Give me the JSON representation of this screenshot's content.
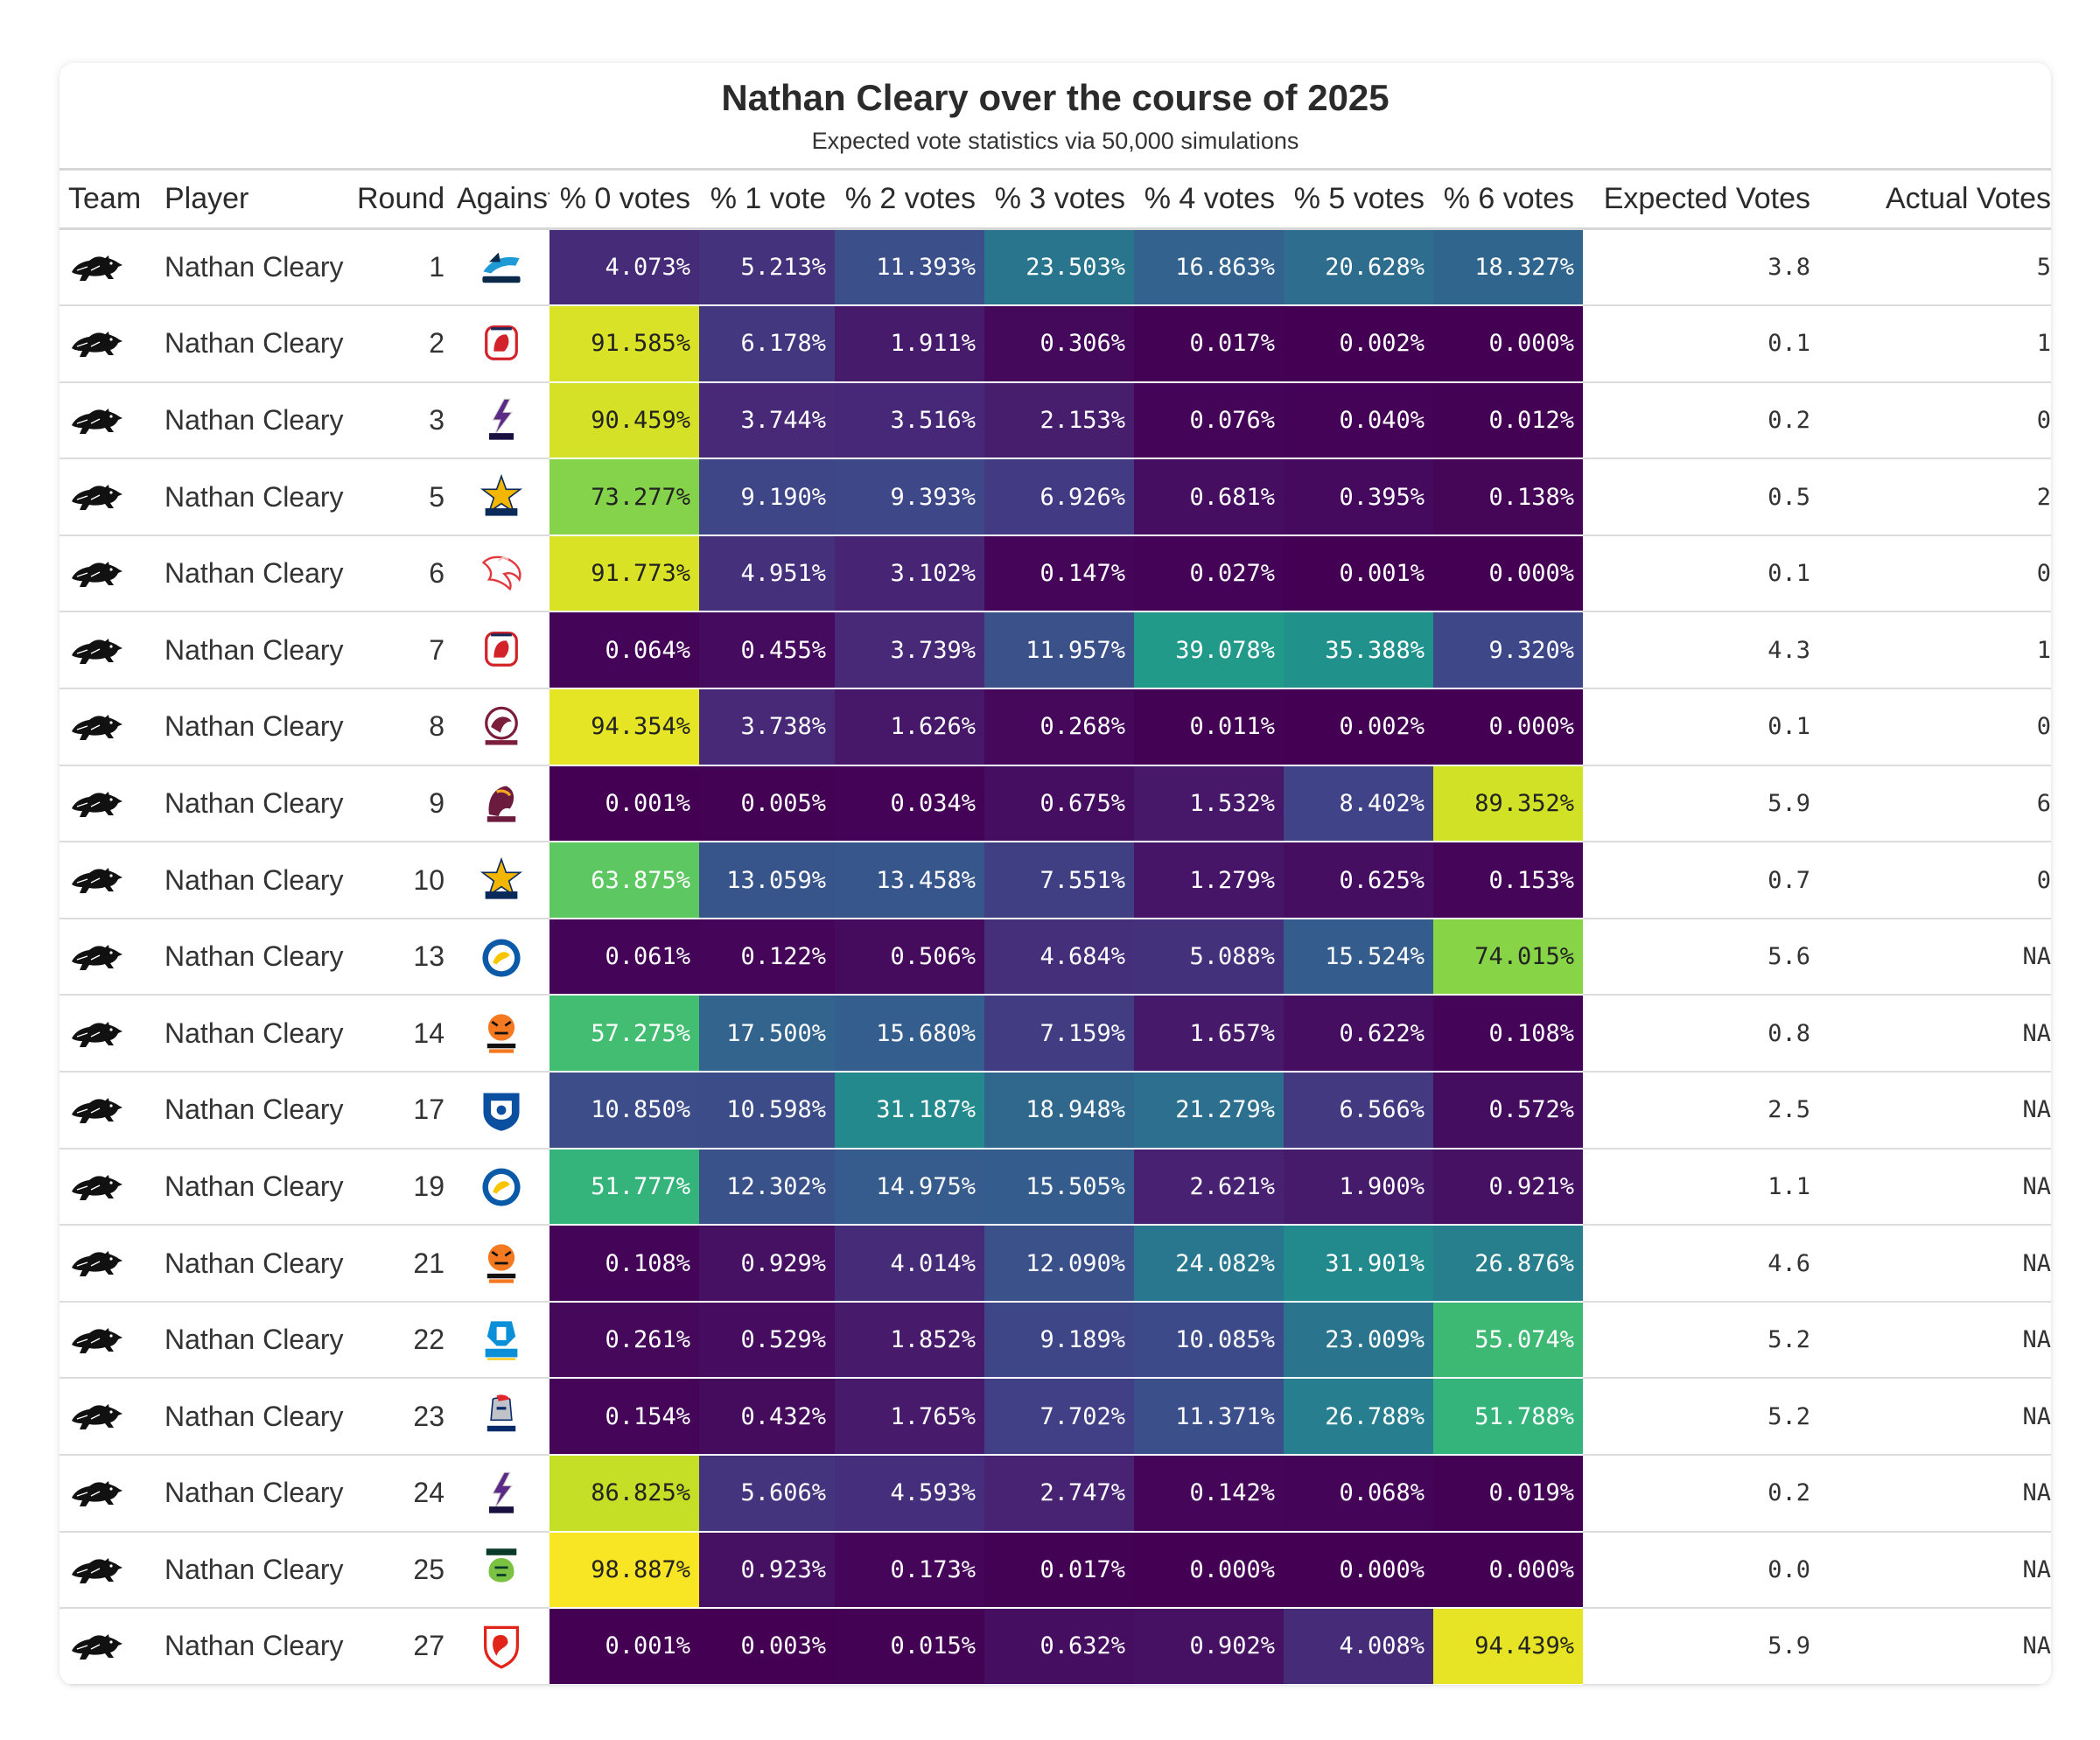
{
  "chart_data": {
    "type": "table",
    "title": "Nathan Cleary over the course of 2025",
    "subtitle": "Expected vote statistics via 50,000 simulations",
    "columns": [
      "Team",
      "Player",
      "Round",
      "Against",
      "% 0 votes",
      "% 1 vote",
      "% 2 votes",
      "% 3 votes",
      "% 4 votes",
      "% 5 votes",
      "% 6 votes",
      "Expected Votes",
      "Actual Votes"
    ],
    "colormap": "viridis",
    "rows": [
      {
        "team_icon": "panthers-logo-icon",
        "player": "Nathan Cleary",
        "round": "1",
        "against": "sharks-logo-icon",
        "pcts": [
          "4.073%",
          "5.213%",
          "11.393%",
          "23.503%",
          "16.863%",
          "20.628%",
          "18.327%"
        ],
        "vals": [
          4.073,
          5.213,
          11.393,
          23.503,
          16.863,
          20.628,
          18.327
        ],
        "expected": "3.8",
        "actual": "5"
      },
      {
        "team_icon": "panthers-logo-icon",
        "player": "Nathan Cleary",
        "round": "2",
        "against": "roosters-logo-icon",
        "pcts": [
          "91.585%",
          "6.178%",
          "1.911%",
          "0.306%",
          "0.017%",
          "0.002%",
          "0.000%"
        ],
        "vals": [
          91.585,
          6.178,
          1.911,
          0.306,
          0.017,
          0.002,
          0.0
        ],
        "expected": "0.1",
        "actual": "1"
      },
      {
        "team_icon": "panthers-logo-icon",
        "player": "Nathan Cleary",
        "round": "3",
        "against": "storm-logo-icon",
        "pcts": [
          "90.459%",
          "3.744%",
          "3.516%",
          "2.153%",
          "0.076%",
          "0.040%",
          "0.012%"
        ],
        "vals": [
          90.459,
          3.744,
          3.516,
          2.153,
          0.076,
          0.04,
          0.012
        ],
        "expected": "0.2",
        "actual": "0"
      },
      {
        "team_icon": "panthers-logo-icon",
        "player": "Nathan Cleary",
        "round": "5",
        "against": "cowboys-logo-icon",
        "pcts": [
          "73.277%",
          "9.190%",
          "9.393%",
          "6.926%",
          "0.681%",
          "0.395%",
          "0.138%"
        ],
        "vals": [
          73.277,
          9.19,
          9.393,
          6.926,
          0.681,
          0.395,
          0.138
        ],
        "expected": "0.5",
        "actual": "2"
      },
      {
        "team_icon": "panthers-logo-icon",
        "player": "Nathan Cleary",
        "round": "6",
        "against": "dolphins-logo-icon",
        "pcts": [
          "91.773%",
          "4.951%",
          "3.102%",
          "0.147%",
          "0.027%",
          "0.001%",
          "0.000%"
        ],
        "vals": [
          91.773,
          4.951,
          3.102,
          0.147,
          0.027,
          0.001,
          0.0
        ],
        "expected": "0.1",
        "actual": "0"
      },
      {
        "team_icon": "panthers-logo-icon",
        "player": "Nathan Cleary",
        "round": "7",
        "against": "roosters-logo-icon",
        "pcts": [
          "0.064%",
          "0.455%",
          "3.739%",
          "11.957%",
          "39.078%",
          "35.388%",
          "9.320%"
        ],
        "vals": [
          0.064,
          0.455,
          3.739,
          11.957,
          39.078,
          35.388,
          9.32
        ],
        "expected": "4.3",
        "actual": "1"
      },
      {
        "team_icon": "panthers-logo-icon",
        "player": "Nathan Cleary",
        "round": "8",
        "against": "sea-eagles-logo-icon",
        "pcts": [
          "94.354%",
          "3.738%",
          "1.626%",
          "0.268%",
          "0.011%",
          "0.002%",
          "0.000%"
        ],
        "vals": [
          94.354,
          3.738,
          1.626,
          0.268,
          0.011,
          0.002,
          0.0
        ],
        "expected": "0.1",
        "actual": "0"
      },
      {
        "team_icon": "panthers-logo-icon",
        "player": "Nathan Cleary",
        "round": "9",
        "against": "broncos-logo-icon",
        "pcts": [
          "0.001%",
          "0.005%",
          "0.034%",
          "0.675%",
          "1.532%",
          "8.402%",
          "89.352%"
        ],
        "vals": [
          0.001,
          0.005,
          0.034,
          0.675,
          1.532,
          8.402,
          89.352
        ],
        "expected": "5.9",
        "actual": "6"
      },
      {
        "team_icon": "panthers-logo-icon",
        "player": "Nathan Cleary",
        "round": "10",
        "against": "cowboys-logo-icon",
        "pcts": [
          "63.875%",
          "13.059%",
          "13.458%",
          "7.551%",
          "1.279%",
          "0.625%",
          "0.153%"
        ],
        "vals": [
          63.875,
          13.059,
          13.458,
          7.551,
          1.279,
          0.625,
          0.153
        ],
        "expected": "0.7",
        "actual": "0"
      },
      {
        "team_icon": "panthers-logo-icon",
        "player": "Nathan Cleary",
        "round": "13",
        "against": "eels-logo-icon",
        "pcts": [
          "0.061%",
          "0.122%",
          "0.506%",
          "4.684%",
          "5.088%",
          "15.524%",
          "74.015%"
        ],
        "vals": [
          0.061,
          0.122,
          0.506,
          4.684,
          5.088,
          15.524,
          74.015
        ],
        "expected": "5.6",
        "actual": "NA"
      },
      {
        "team_icon": "panthers-logo-icon",
        "player": "Nathan Cleary",
        "round": "14",
        "against": "wests-tigers-logo-icon",
        "pcts": [
          "57.275%",
          "17.500%",
          "15.680%",
          "7.159%",
          "1.657%",
          "0.622%",
          "0.108%"
        ],
        "vals": [
          57.275,
          17.5,
          15.68,
          7.159,
          1.657,
          0.622,
          0.108
        ],
        "expected": "0.8",
        "actual": "NA"
      },
      {
        "team_icon": "panthers-logo-icon",
        "player": "Nathan Cleary",
        "round": "17",
        "against": "bulldogs-logo-icon",
        "pcts": [
          "10.850%",
          "10.598%",
          "31.187%",
          "18.948%",
          "21.279%",
          "6.566%",
          "0.572%"
        ],
        "vals": [
          10.85,
          10.598,
          31.187,
          18.948,
          21.279,
          6.566,
          0.572
        ],
        "expected": "2.5",
        "actual": "NA"
      },
      {
        "team_icon": "panthers-logo-icon",
        "player": "Nathan Cleary",
        "round": "19",
        "against": "eels-logo-icon",
        "pcts": [
          "51.777%",
          "12.302%",
          "14.975%",
          "15.505%",
          "2.621%",
          "1.900%",
          "0.921%"
        ],
        "vals": [
          51.777,
          12.302,
          14.975,
          15.505,
          2.621,
          1.9,
          0.921
        ],
        "expected": "1.1",
        "actual": "NA"
      },
      {
        "team_icon": "panthers-logo-icon",
        "player": "Nathan Cleary",
        "round": "21",
        "against": "wests-tigers-logo-icon",
        "pcts": [
          "0.108%",
          "0.929%",
          "4.014%",
          "12.090%",
          "24.082%",
          "31.901%",
          "26.876%"
        ],
        "vals": [
          0.108,
          0.929,
          4.014,
          12.09,
          24.082,
          31.901,
          26.876
        ],
        "expected": "4.6",
        "actual": "NA"
      },
      {
        "team_icon": "panthers-logo-icon",
        "player": "Nathan Cleary",
        "round": "22",
        "against": "titans-logo-icon",
        "pcts": [
          "0.261%",
          "0.529%",
          "1.852%",
          "9.189%",
          "10.085%",
          "23.009%",
          "55.074%"
        ],
        "vals": [
          0.261,
          0.529,
          1.852,
          9.189,
          10.085,
          23.009,
          55.074
        ],
        "expected": "5.2",
        "actual": "NA"
      },
      {
        "team_icon": "panthers-logo-icon",
        "player": "Nathan Cleary",
        "round": "23",
        "against": "knights-logo-icon",
        "pcts": [
          "0.154%",
          "0.432%",
          "1.765%",
          "7.702%",
          "11.371%",
          "26.788%",
          "51.788%"
        ],
        "vals": [
          0.154,
          0.432,
          1.765,
          7.702,
          11.371,
          26.788,
          51.788
        ],
        "expected": "5.2",
        "actual": "NA"
      },
      {
        "team_icon": "panthers-logo-icon",
        "player": "Nathan Cleary",
        "round": "24",
        "against": "storm-logo-icon",
        "pcts": [
          "86.825%",
          "5.606%",
          "4.593%",
          "2.747%",
          "0.142%",
          "0.068%",
          "0.019%"
        ],
        "vals": [
          86.825,
          5.606,
          4.593,
          2.747,
          0.142,
          0.068,
          0.019
        ],
        "expected": "0.2",
        "actual": "NA"
      },
      {
        "team_icon": "panthers-logo-icon",
        "player": "Nathan Cleary",
        "round": "25",
        "against": "raiders-logo-icon",
        "pcts": [
          "98.887%",
          "0.923%",
          "0.173%",
          "0.017%",
          "0.000%",
          "0.000%",
          "0.000%"
        ],
        "vals": [
          98.887,
          0.923,
          0.173,
          0.017,
          0.0,
          0.0,
          0.0
        ],
        "expected": "0.0",
        "actual": "NA"
      },
      {
        "team_icon": "panthers-logo-icon",
        "player": "Nathan Cleary",
        "round": "27",
        "against": "dragons-logo-icon",
        "pcts": [
          "0.001%",
          "0.003%",
          "0.015%",
          "0.632%",
          "0.902%",
          "4.008%",
          "94.439%"
        ],
        "vals": [
          0.001,
          0.003,
          0.015,
          0.632,
          0.902,
          4.008,
          94.439
        ],
        "expected": "5.9",
        "actual": "NA"
      }
    ]
  },
  "logos": {
    "sharks-logo-icon": {
      "primary": "#1e9ad6",
      "secondary": "#0b2a4a",
      "text": "SHARKS"
    },
    "roosters-logo-icon": {
      "primary": "#d2232a",
      "secondary": "#1c2a5a",
      "text": "ROOSTERS"
    },
    "storm-logo-icon": {
      "primary": "#5b2a86",
      "secondary": "#1a1040",
      "text": "STORM"
    },
    "cowboys-logo-icon": {
      "primary": "#f2b600",
      "secondary": "#0a2a5a",
      "text": "COWBOYS"
    },
    "dolphins-logo-icon": {
      "primary": "#e2393f",
      "secondary": "#f6c3c4",
      "text": ""
    },
    "sea-eagles-logo-icon": {
      "primary": "#7a1e3c",
      "secondary": "#c8c8c8",
      "text": "SEA EAGLES"
    },
    "broncos-logo-icon": {
      "primary": "#6b1b3d",
      "secondary": "#f5a623",
      "text": "BRONCOS"
    },
    "eels-logo-icon": {
      "primary": "#0a5aa8",
      "secondary": "#f7c600",
      "text": "EELS"
    },
    "wests-tigers-logo-icon": {
      "primary": "#f47920",
      "secondary": "#111111",
      "text": "WESTS"
    },
    "bulldogs-logo-icon": {
      "primary": "#0a4fa0",
      "secondary": "#ffffff",
      "text": ""
    },
    "titans-logo-icon": {
      "primary": "#0a8fd8",
      "secondary": "#f4c300",
      "text": "TITANS"
    },
    "knights-logo-icon": {
      "primary": "#e3242b",
      "secondary": "#0a2a6a",
      "text": "KNIGHTS"
    },
    "raiders-logo-icon": {
      "primary": "#7bc242",
      "secondary": "#0a3a2a",
      "text": "RAIDERS"
    },
    "dragons-logo-icon": {
      "primary": "#e2231a",
      "secondary": "#ffffff",
      "text": ""
    }
  }
}
